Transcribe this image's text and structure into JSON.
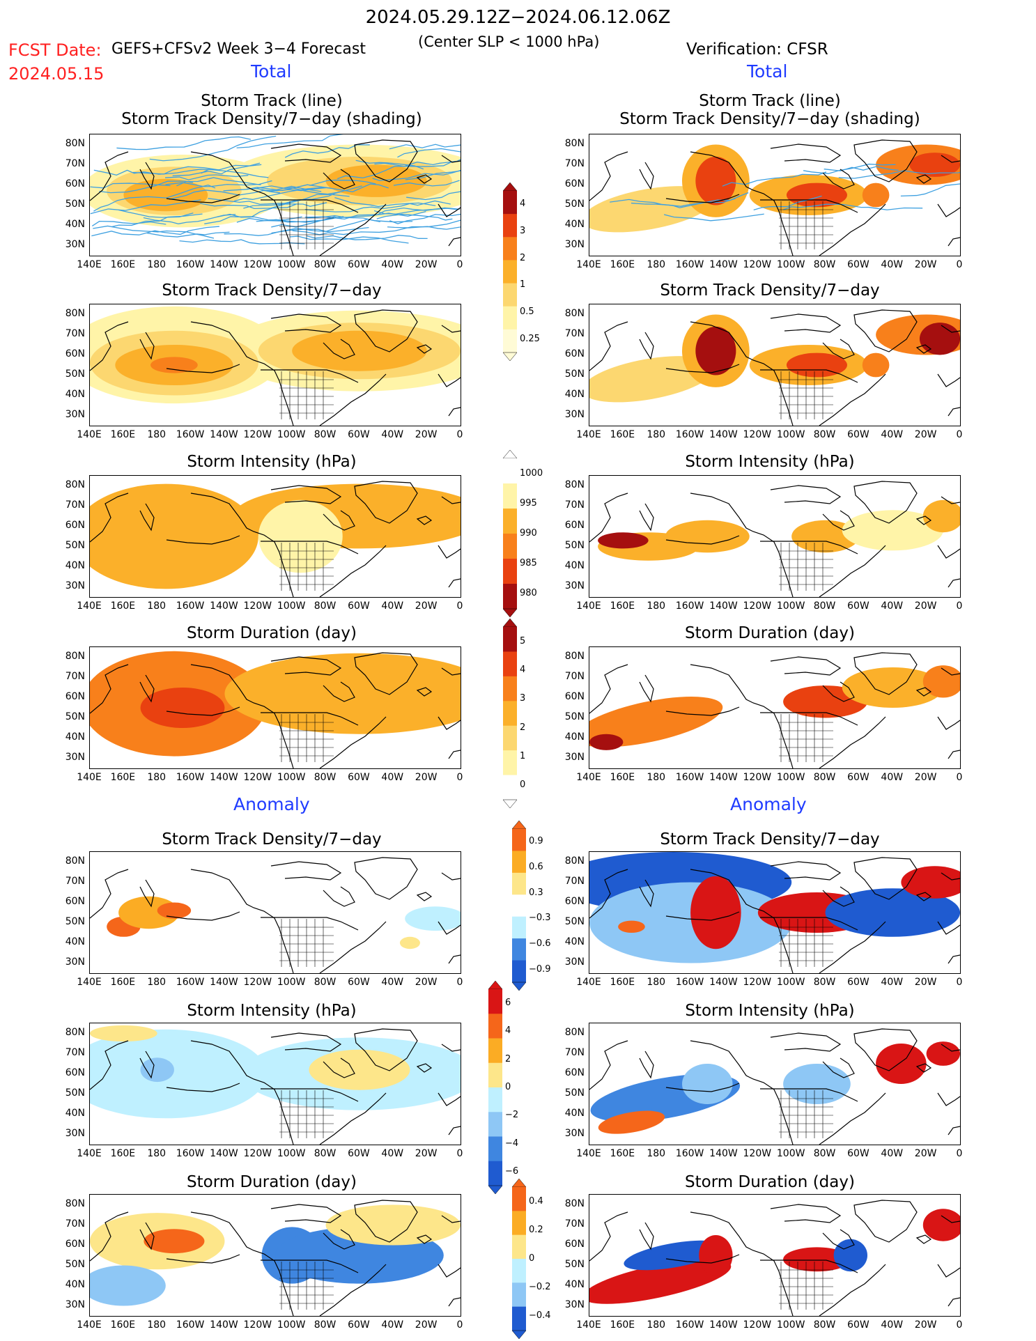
{
  "header": {
    "date_range": "2024.05.29.12Z−2024.06.12.06Z",
    "fcst_label": "FCST Date:",
    "fcst_date": "2024.05.15",
    "model": "GEFS+CFSv2 Week 3−4 Forecast",
    "criterion": "(Center SLP < 1000 hPa)",
    "verification": "Verification: CFSR"
  },
  "sections": {
    "left_total": "Total",
    "right_total": "Total",
    "left_anomaly": "Anomaly",
    "right_anomaly": "Anomaly"
  },
  "panel_titles": {
    "track_line": "Storm Track (line)",
    "track_shading": "Storm Track Density/7−day (shading)",
    "density": "Storm Track Density/7−day",
    "intensity": "Storm Intensity (hPa)",
    "duration": "Storm Duration (day)"
  },
  "axes": {
    "lat_ticks": [
      "80N",
      "70N",
      "60N",
      "50N",
      "40N",
      "30N"
    ],
    "lon_ticks": [
      "140E",
      "160E",
      "180",
      "160W",
      "140W",
      "120W",
      "100W",
      "80W",
      "60W",
      "40W",
      "20W",
      "0"
    ]
  },
  "colorbars": {
    "density": [
      "4",
      "3",
      "2",
      "1",
      "0.5",
      "0.25"
    ],
    "intensity": [
      "1000",
      "995",
      "990",
      "985",
      "980"
    ],
    "duration": [
      "5",
      "4",
      "3",
      "2",
      "1",
      "0"
    ],
    "density_anom": [
      "0.9",
      "0.6",
      "0.3",
      "−0.3",
      "−0.6",
      "−0.9"
    ],
    "intensity_anom": [
      "6",
      "4",
      "2",
      "0",
      "−2",
      "−4",
      "−6"
    ],
    "duration_anom": [
      "0.4",
      "0.2",
      "0",
      "−0.2",
      "−0.4"
    ]
  },
  "colors": {
    "seq": [
      "#fff4a8",
      "#fcd770",
      "#fbb02a",
      "#f8801b",
      "#e94110",
      "#a50f0f"
    ],
    "div_warm": [
      "#fde68a",
      "#fbac24",
      "#f5661a",
      "#d91515"
    ],
    "div_cool": [
      "#bff0ff",
      "#8ec7f5",
      "#3f86e0",
      "#1f5bd0"
    ],
    "track_line": "#3ea0e0"
  }
}
